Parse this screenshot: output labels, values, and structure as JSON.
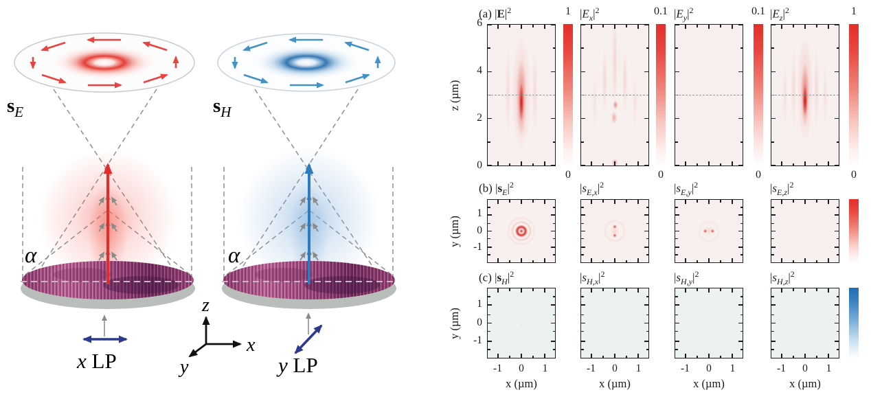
{
  "colors": {
    "red_accent": "#e0312c",
    "blue_accent": "#2673b8",
    "navy_arrow": "#2b3a8c",
    "lens_magenta": "#a34a80",
    "panel_bg_warm": "#f8f0ee",
    "panel_bg_cool": "#ebf2f0"
  },
  "left": {
    "sE": {
      "main": "s",
      "sub": "E"
    },
    "sH": {
      "main": "s",
      "sub": "H"
    },
    "alpha": "α",
    "lp_left": {
      "sym": "x",
      "rest": " LP"
    },
    "lp_right": {
      "sym": "y",
      "rest": " LP"
    },
    "axes": {
      "x": "x",
      "y": "y",
      "z": "z"
    }
  },
  "right": {
    "bar": "|",
    "sup": "2",
    "xlabel": "x (µm)",
    "xtick_labels": [
      "-1",
      "0",
      "1"
    ],
    "rows": [
      {
        "id": "a",
        "ylabel": "z (µm)",
        "ytick_labels": [
          "6",
          "4",
          "2",
          "0"
        ],
        "cbar_bottom": "0",
        "panels": [
          {
            "tag": "(a) ",
            "sym": "E",
            "bold": true,
            "sub": "",
            "cbar_top": "1",
            "kind": "E"
          },
          {
            "tag": "",
            "sym": "E",
            "bold": false,
            "sub": "x",
            "cbar_top": "0.1",
            "kind": "Ex"
          },
          {
            "tag": "",
            "sym": "E",
            "bold": false,
            "sub": "y",
            "cbar_top": "0.1",
            "kind": "Ey"
          },
          {
            "tag": "",
            "sym": "E",
            "bold": false,
            "sub": "z",
            "cbar_top": "1",
            "kind": "Ez"
          }
        ]
      },
      {
        "id": "b",
        "ylabel": "y (µm)",
        "ytick_labels": [
          "1",
          "0",
          "-1"
        ],
        "cbar": "red",
        "panels": [
          {
            "tag": "(b) ",
            "sym": "s",
            "bold": true,
            "sub": "E",
            "kind": "sE"
          },
          {
            "tag": "",
            "sym": "s",
            "bold": false,
            "sub": "E,x",
            "kind": "sEx"
          },
          {
            "tag": "",
            "sym": "s",
            "bold": false,
            "sub": "E,y",
            "kind": "sEy"
          },
          {
            "tag": "",
            "sym": "s",
            "bold": false,
            "sub": "E,z",
            "kind": "sEz"
          }
        ]
      },
      {
        "id": "c",
        "ylabel": "y (µm)",
        "ytick_labels": [
          "1",
          "0",
          "-1"
        ],
        "cbar": "blue",
        "panels": [
          {
            "tag": "(c) ",
            "sym": "s",
            "bold": true,
            "sub": "H",
            "kind": "sH"
          },
          {
            "tag": "",
            "sym": "s",
            "bold": false,
            "sub": "H,x",
            "kind": "sHx"
          },
          {
            "tag": "",
            "sym": "s",
            "bold": false,
            "sub": "H,y",
            "kind": "sHy"
          },
          {
            "tag": "",
            "sym": "s",
            "bold": false,
            "sub": "H,z",
            "kind": "sHz"
          }
        ]
      }
    ]
  },
  "chart_data": [
    {
      "type": "heatmap",
      "panel": "|E|^2",
      "row": "a",
      "x_um": [
        -1.5,
        1.5
      ],
      "z_um": [
        0,
        6
      ],
      "colorbar_range": [
        0,
        1
      ],
      "dashed_line_z": 3,
      "pattern": "bright vertical focal streak at x=0 spanning z≈1–5 µm, peak near z≈2.5–3 µm, faint side lobes"
    },
    {
      "type": "heatmap",
      "panel": "|E_x|^2",
      "row": "a",
      "x_um": [
        -1.5,
        1.5
      ],
      "z_um": [
        0,
        6
      ],
      "colorbar_range": [
        0,
        0.1
      ],
      "dashed_line_z": 3,
      "pattern": "weak mottled interference speckle, small maxima near x=0 at z≈2.5 and z≈0"
    },
    {
      "type": "heatmap",
      "panel": "|E_y|^2",
      "row": "a",
      "x_um": [
        -1.5,
        1.5
      ],
      "z_um": [
        0,
        6
      ],
      "colorbar_range": [
        0,
        0.1
      ],
      "dashed_line_z": 3,
      "pattern": "negligible, nearly uniform"
    },
    {
      "type": "heatmap",
      "panel": "|E_z|^2",
      "row": "a",
      "x_um": [
        -1.5,
        1.5
      ],
      "z_um": [
        0,
        6
      ],
      "colorbar_range": [
        0,
        1
      ],
      "dashed_line_z": 3,
      "pattern": "narrow intense streak at x=0 between z≈2–3.5 µm with faint vertical side fringes"
    },
    {
      "type": "heatmap",
      "panel": "|s_E|^2",
      "row": "b",
      "x_um": [
        -1.5,
        1.5
      ],
      "y_um": [
        -1.6,
        1.6
      ],
      "colorbar": "red, unlabeled",
      "pattern": "bullseye at origin: bright center dot surrounded by red ring and faint ripples"
    },
    {
      "type": "heatmap",
      "panel": "|s_E,x|^2",
      "row": "b",
      "x_um": [
        -1.5,
        1.5
      ],
      "y_um": [
        -1.6,
        1.6
      ],
      "colorbar": "red, unlabeled",
      "pattern": "two red lobes above and below origin along y"
    },
    {
      "type": "heatmap",
      "panel": "|s_E,y|^2",
      "row": "b",
      "x_um": [
        -1.5,
        1.5
      ],
      "y_um": [
        -1.6,
        1.6
      ],
      "colorbar": "red, unlabeled",
      "pattern": "two red lobes left and right of origin along x"
    },
    {
      "type": "heatmap",
      "panel": "|s_E,z|^2",
      "row": "b",
      "x_um": [
        -1.5,
        1.5
      ],
      "y_um": [
        -1.6,
        1.6
      ],
      "colorbar": "red, unlabeled",
      "pattern": "negligible"
    },
    {
      "type": "heatmap",
      "panel": "|s_H|^2",
      "row": "c",
      "x_um": [
        -1.5,
        1.5
      ],
      "y_um": [
        -1.6,
        1.6
      ],
      "colorbar": "blue, unlabeled",
      "pattern": "negligible, uniform pale blue"
    },
    {
      "type": "heatmap",
      "panel": "|s_H,x|^2",
      "row": "c",
      "x_um": [
        -1.5,
        1.5
      ],
      "y_um": [
        -1.6,
        1.6
      ],
      "colorbar": "blue, unlabeled",
      "pattern": "negligible"
    },
    {
      "type": "heatmap",
      "panel": "|s_H,y|^2",
      "row": "c",
      "x_um": [
        -1.5,
        1.5
      ],
      "y_um": [
        -1.6,
        1.6
      ],
      "colorbar": "blue, unlabeled",
      "pattern": "negligible"
    },
    {
      "type": "heatmap",
      "panel": "|s_H,z|^2",
      "row": "c",
      "x_um": [
        -1.5,
        1.5
      ],
      "y_um": [
        -1.6,
        1.6
      ],
      "colorbar": "blue, unlabeled",
      "pattern": "negligible"
    }
  ]
}
